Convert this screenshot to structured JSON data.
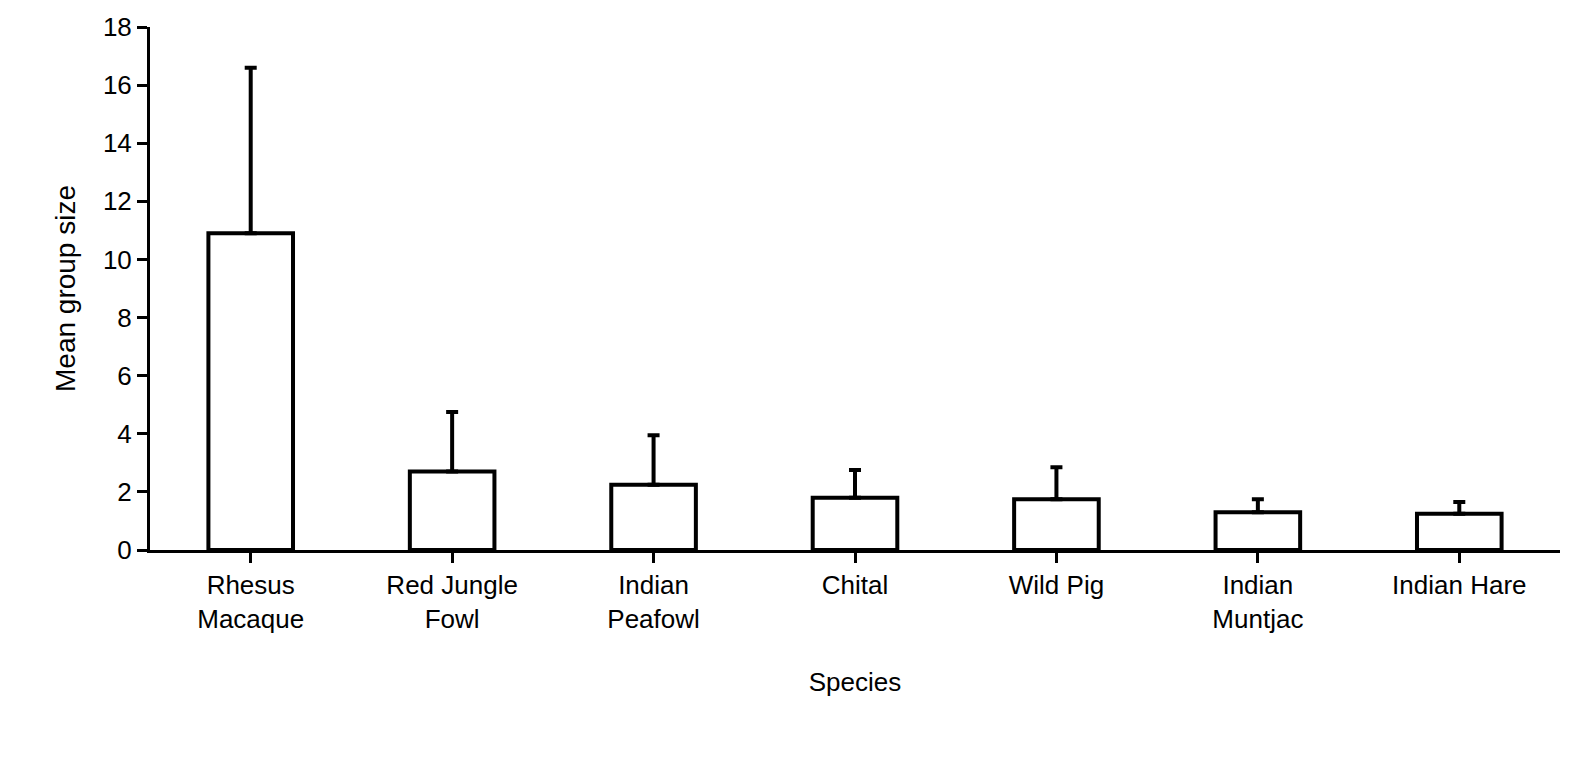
{
  "chart_data": {
    "type": "bar",
    "x_label": "Species",
    "y_label": "Mean group size",
    "categories": [
      "Rhesus Macaque",
      "Red Jungle Fowl",
      "Indian Peafowl",
      "Chital",
      "Wild Pig",
      "Indian Muntjac",
      "Indian Hare"
    ],
    "values": [
      10.9,
      2.7,
      2.25,
      1.8,
      1.75,
      1.3,
      1.25
    ],
    "errors": [
      5.7,
      2.05,
      1.7,
      0.95,
      1.1,
      0.45,
      0.4
    ],
    "color": "#ffffff",
    "ylim": [
      0,
      18
    ],
    "yticks": [
      0,
      2,
      4,
      6,
      8,
      10,
      12,
      14,
      16,
      18
    ],
    "grid": false
  }
}
